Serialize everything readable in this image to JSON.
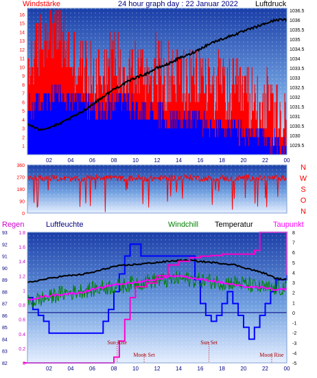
{
  "header": {
    "left_label": "Windstärke",
    "title": "24 hour graph day : 22 Januar 2022",
    "right_label": "Luftdruck"
  },
  "mid_header": {
    "compass_label": "N W S O N"
  },
  "bottom_header": {
    "regen": "Regen",
    "luftfeuchte": "Luftfeuchte",
    "windchill": "Windchill",
    "temperatur": "Temperatur",
    "taupunkt": "Taupunkt"
  },
  "colors": {
    "wind_gust": "#ff0000",
    "wind_avg": "#0000ff",
    "pressure": "#000000",
    "wind_dir": "#ff0000",
    "rain": "#ff00cc",
    "humidity": "#0000ff",
    "windchill": "#008000",
    "temperature": "#000000",
    "dewpoint": "#ff00ff",
    "label_red": "#ff0000",
    "label_navy": "#000080",
    "compass": "#ff0000",
    "bg_top": "#1a3ea8",
    "bg_bottom": "#dde8ff"
  },
  "chart_data": [
    {
      "type": "line",
      "name": "wind-pressure",
      "title": "24 hour graph day : 22 Januar 2022",
      "x_ticks": [
        "02",
        "04",
        "06",
        "08",
        "10",
        "12",
        "14",
        "16",
        "18",
        "20",
        "22",
        "00"
      ],
      "y_left_ticks": [
        "1",
        "2",
        "3",
        "4",
        "5",
        "6",
        "7",
        "8",
        "9",
        "10",
        "11",
        "12",
        "13",
        "14",
        "15",
        "16"
      ],
      "y_left_range": [
        0,
        16.7
      ],
      "y_right_ticks": [
        "1029.5",
        "1030",
        "1030.5",
        "1031",
        "1031.5",
        "1032",
        "1032.5",
        "1033",
        "1033.5",
        "1034",
        "1034.5",
        "1035",
        "1035.5",
        "1036",
        "1036.5"
      ],
      "y_right_range": [
        1029.0,
        1036.6
      ],
      "series": [
        {
          "name": "Windstärke",
          "kind": "gust",
          "x": [
            0,
            1,
            2,
            3,
            4,
            5,
            6,
            7,
            8,
            9,
            10,
            11,
            12,
            13,
            14,
            15,
            16,
            17,
            18,
            19,
            20,
            21,
            22,
            23,
            24
          ],
          "values": [
            10,
            12,
            15,
            14,
            11,
            10,
            9,
            10,
            11,
            10,
            10,
            9,
            10,
            9,
            9,
            8,
            9,
            8,
            8,
            7,
            7,
            6,
            6,
            4,
            3
          ]
        },
        {
          "name": "Windstärke Mittel",
          "kind": "average",
          "x": [
            0,
            1,
            2,
            3,
            4,
            5,
            6,
            7,
            8,
            9,
            10,
            11,
            12,
            13,
            14,
            15,
            16,
            17,
            18,
            19,
            20,
            21,
            22,
            23,
            24
          ],
          "values": [
            5,
            6,
            6,
            7,
            6,
            6,
            5,
            5,
            6,
            6,
            5,
            5,
            5,
            4,
            4,
            4,
            4,
            3,
            3,
            3,
            2,
            2,
            2,
            1,
            1
          ]
        },
        {
          "name": "Luftdruck",
          "kind": "pressure",
          "x": [
            0,
            1,
            2,
            3,
            4,
            5,
            6,
            7,
            8,
            9,
            10,
            11,
            12,
            13,
            14,
            15,
            16,
            17,
            18,
            19,
            20,
            21,
            22,
            23,
            24
          ],
          "values": [
            1030.6,
            1030.3,
            1030.4,
            1030.6,
            1030.9,
            1031.2,
            1031.6,
            1032.0,
            1032.4,
            1032.7,
            1033.0,
            1033.2,
            1033.5,
            1033.7,
            1034.0,
            1034.2,
            1034.5,
            1034.8,
            1035.0,
            1035.2,
            1035.4,
            1035.6,
            1035.8,
            1036.0,
            1036.0
          ]
        }
      ]
    },
    {
      "type": "line",
      "name": "wind-direction",
      "x_ticks": [
        "02",
        "04",
        "06",
        "08",
        "10",
        "12",
        "14",
        "16",
        "18",
        "20",
        "22",
        "00"
      ],
      "y_ticks": [
        "0",
        "90",
        "180",
        "270",
        "360"
      ],
      "y_range": [
        0,
        360
      ],
      "series": [
        {
          "name": "Windrichtung",
          "x": [
            0,
            1,
            2,
            3,
            4,
            5,
            6,
            7,
            8,
            9,
            10,
            11,
            12,
            13,
            14,
            15,
            16,
            17,
            18,
            19,
            20,
            21,
            22,
            23,
            24
          ],
          "values": [
            270,
            265,
            260,
            262,
            255,
            250,
            268,
            270,
            265,
            255,
            262,
            258,
            260,
            265,
            262,
            268,
            260,
            258,
            262,
            255,
            265,
            262,
            258,
            262,
            264
          ]
        }
      ]
    },
    {
      "type": "line",
      "name": "temperature-humidity",
      "x_ticks": [
        "02",
        "04",
        "06",
        "08",
        "10",
        "12",
        "14",
        "16",
        "18",
        "20",
        "22",
        "00"
      ],
      "y_humidity_ticks": [
        "82",
        "83",
        "84",
        "85",
        "86",
        "87",
        "88",
        "89",
        "90",
        "91",
        "92",
        "93"
      ],
      "y_humidity_range": [
        82,
        93
      ],
      "y_rain_ticks": [
        "0",
        "0.2",
        "0.4",
        "0.6",
        "0.8",
        "1",
        "1.2",
        "1.4",
        "1.6",
        "1.8"
      ],
      "y_rain_range": [
        0,
        1.8
      ],
      "y_temp_ticks": [
        "-5",
        "-4",
        "-3",
        "-2",
        "-1",
        "0",
        "1",
        "2",
        "3",
        "4",
        "5",
        "6",
        "7",
        "8"
      ],
      "y_temp_range": [
        -5,
        8
      ],
      "annotations": [
        {
          "label": "Sun Rise",
          "x": 8.3
        },
        {
          "label": "Moon Set",
          "x": 10.8
        },
        {
          "label": "Sun Set",
          "x": 16.8
        },
        {
          "label": "Moon Rise",
          "x": 22.6
        }
      ],
      "series": [
        {
          "name": "Regen",
          "x": [
            0,
            1,
            2,
            3,
            4,
            5,
            6,
            7,
            7.9,
            8.0,
            8.5,
            9.0,
            9.5,
            10,
            11,
            12,
            13,
            14,
            15,
            16,
            17,
            18,
            19,
            20,
            21,
            21.5,
            22,
            23,
            24
          ],
          "values": [
            0,
            0,
            0,
            0,
            0,
            0,
            0,
            0,
            0,
            0.08,
            0.3,
            0.6,
            0.9,
            1.05,
            1.1,
            1.2,
            1.35,
            1.4,
            1.45,
            1.47,
            1.48,
            1.5,
            1.5,
            1.5,
            1.55,
            1.8,
            1.8,
            1.8,
            1.8
          ]
        },
        {
          "name": "Luftfeuchte",
          "x": [
            0,
            0.5,
            1,
            1.5,
            2,
            3,
            4,
            5,
            6,
            7,
            7.5,
            8,
            8.5,
            9,
            9.5,
            10,
            10.5,
            11,
            12,
            13,
            14,
            15,
            15.5,
            16,
            16.5,
            17,
            17.5,
            18,
            18.5,
            19,
            19.5,
            20,
            20.5,
            21,
            21.5,
            22,
            22.5,
            23,
            24
          ],
          "values": [
            87.5,
            86.5,
            86,
            85.5,
            84.5,
            84.5,
            84.5,
            84.5,
            84.5,
            85.5,
            86.5,
            88,
            89.5,
            91,
            92,
            92,
            91,
            91,
            91,
            91,
            91,
            91,
            89,
            87,
            86,
            85.5,
            86,
            87,
            88,
            87,
            86,
            85,
            84,
            85,
            86,
            87,
            88,
            89,
            91
          ]
        },
        {
          "name": "Windchill",
          "x": [
            0,
            1,
            2,
            3,
            4,
            5,
            6,
            7,
            8,
            9,
            10,
            11,
            12,
            13,
            14,
            15,
            16,
            17,
            18,
            19,
            20,
            21,
            22,
            23,
            24
          ],
          "values": [
            1.0,
            1.3,
            1.5,
            1.9,
            2.0,
            2.2,
            2.3,
            2.5,
            2.6,
            2.7,
            3.0,
            3.1,
            3.2,
            3.2,
            3.4,
            3.3,
            3.2,
            3.1,
            3.0,
            3.0,
            2.9,
            2.6,
            2.4,
            2.4,
            2.5
          ]
        },
        {
          "name": "Temperatur",
          "x": [
            0,
            1,
            2,
            3,
            4,
            5,
            6,
            7,
            8,
            9,
            10,
            11,
            12,
            13,
            14,
            15,
            16,
            17,
            18,
            19,
            20,
            21,
            22,
            23,
            24
          ],
          "values": [
            3.0,
            3.2,
            3.4,
            3.6,
            3.7,
            3.8,
            4.0,
            4.3,
            4.6,
            4.7,
            4.8,
            4.9,
            5.0,
            5.1,
            5.2,
            5.2,
            5.1,
            5.0,
            4.9,
            4.8,
            4.5,
            4.2,
            3.9,
            3.4,
            3.3
          ]
        },
        {
          "name": "Taupunkt",
          "x": [
            0,
            1,
            2,
            3,
            4,
            5,
            6,
            7,
            8,
            9,
            10,
            11,
            12,
            13,
            14,
            15,
            16,
            17,
            18,
            19,
            20,
            21,
            22,
            23,
            24
          ],
          "values": [
            1.3,
            1.5,
            1.7,
            1.8,
            1.9,
            2.0,
            2.3,
            2.5,
            2.8,
            2.9,
            3.0,
            3.2,
            3.3,
            3.6,
            3.7,
            3.5,
            3.3,
            3.2,
            3.0,
            2.8,
            2.6,
            2.5,
            2.5,
            2.2,
            2.4
          ]
        }
      ]
    }
  ]
}
